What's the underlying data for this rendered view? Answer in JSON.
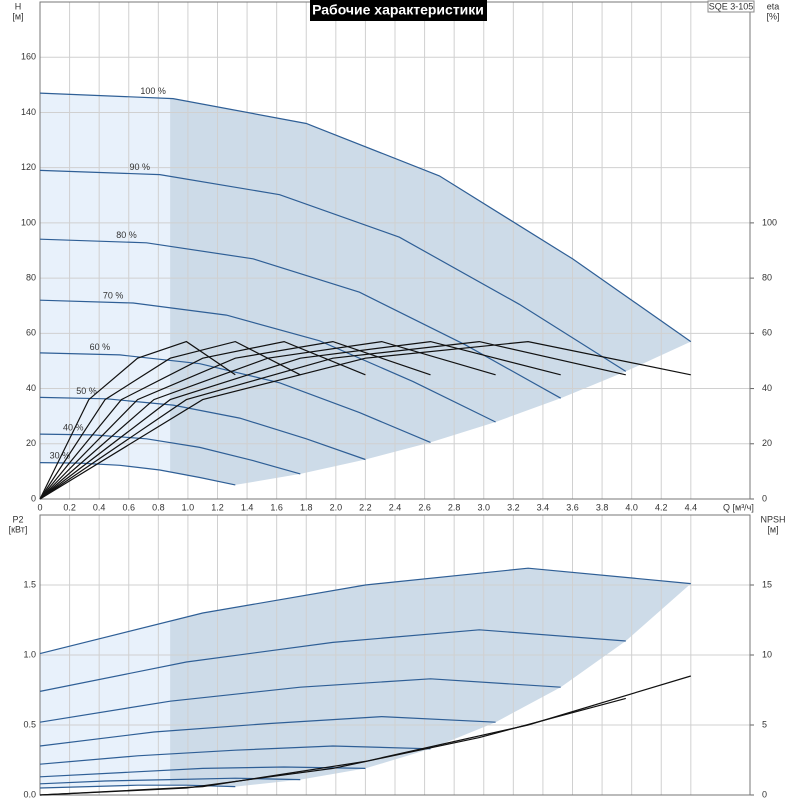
{
  "title": "Рабочие характеристики",
  "model": "SQE 3-105",
  "chart_data": [
    {
      "type": "line",
      "y_label": "H",
      "y_unit": "[м]",
      "y2_label": "eta",
      "y2_unit": "[%]",
      "x_label": "Q [м³/ч]",
      "xlim": [
        0,
        4.8
      ],
      "ylim": [
        0,
        180
      ],
      "y2lim": [
        0,
        180
      ],
      "grid": true,
      "min_q": 0.88,
      "xticks": [
        0,
        0.2,
        0.4,
        0.6,
        0.8,
        {
          "value": 1,
          "label": "1.0"
        },
        1.2,
        1.4,
        1.6,
        1.8,
        {
          "value": 2,
          "label": "2.0"
        },
        2.2,
        2.4,
        2.6,
        2.8,
        {
          "value": 3,
          "label": "3.0"
        },
        3.2,
        3.4,
        3.6,
        3.8,
        {
          "value": 4,
          "label": "4.0"
        },
        4.2,
        4.4
      ],
      "yticks": [
        0,
        20,
        40,
        60,
        80,
        100,
        120,
        140,
        160
      ],
      "y2ticks": [
        0,
        20,
        40,
        60,
        80,
        100
      ],
      "series": [
        {
          "name": "100 %",
          "color": "#2f5f96",
          "x": [
            0,
            0.9,
            1.8,
            2.7,
            3.6,
            4.4
          ],
          "values": [
            147,
            145,
            136,
            117,
            87,
            57
          ]
        },
        {
          "name": "90 %",
          "color": "#2f5f96",
          "x": [
            0,
            0.81,
            1.62,
            2.43,
            3.24,
            3.96
          ],
          "values": [
            119,
            117.5,
            110.2,
            94.8,
            70.5,
            46.2
          ]
        },
        {
          "name": "80 %",
          "color": "#2f5f96",
          "x": [
            0,
            0.72,
            1.44,
            2.16,
            2.88,
            3.52
          ],
          "values": [
            94.1,
            92.8,
            87,
            74.9,
            55.7,
            36.5
          ]
        },
        {
          "name": "70 %",
          "color": "#2f5f96",
          "x": [
            0,
            0.63,
            1.26,
            1.89,
            2.52,
            3.08
          ],
          "values": [
            72,
            71,
            66.6,
            57.3,
            42.6,
            27.9
          ]
        },
        {
          "name": "60 %",
          "color": "#2f5f96",
          "x": [
            0,
            0.54,
            1.08,
            1.62,
            2.16,
            2.64
          ],
          "values": [
            52.9,
            52.2,
            49,
            42.1,
            31.3,
            20.5
          ]
        },
        {
          "name": "50 %",
          "color": "#2f5f96",
          "x": [
            0,
            0.45,
            0.9,
            1.35,
            1.8,
            2.2
          ],
          "values": [
            36.8,
            36.3,
            34,
            29.3,
            21.8,
            14.3
          ]
        },
        {
          "name": "40 %",
          "color": "#2f5f96",
          "x": [
            0,
            0.36,
            0.72,
            1.08,
            1.44,
            1.76
          ],
          "values": [
            23.5,
            23.2,
            21.8,
            18.7,
            13.9,
            9.1
          ]
        },
        {
          "name": "30 %",
          "color": "#2f5f96",
          "x": [
            0,
            0.27,
            0.54,
            0.81,
            1.08,
            1.32
          ],
          "values": [
            13.2,
            13,
            12.2,
            10.5,
            7.8,
            5.1
          ]
        },
        {
          "axis": "y2",
          "color": "#111111",
          "x": [
            0,
            1.1,
            2.2,
            3.3,
            4.4
          ],
          "values": [
            0,
            36,
            51,
            57,
            45
          ]
        },
        {
          "axis": "y2",
          "color": "#111111",
          "x": [
            0,
            0.99,
            1.98,
            2.97,
            3.96
          ],
          "values": [
            0,
            36,
            51,
            57,
            45
          ]
        },
        {
          "axis": "y2",
          "color": "#111111",
          "x": [
            0,
            0.88,
            1.76,
            2.64,
            3.52
          ],
          "values": [
            0,
            36,
            51,
            57,
            45
          ]
        },
        {
          "axis": "y2",
          "color": "#111111",
          "x": [
            0,
            0.77,
            1.54,
            2.31,
            3.08
          ],
          "values": [
            0,
            36,
            51,
            57,
            45
          ]
        },
        {
          "axis": "y2",
          "color": "#111111",
          "x": [
            0,
            0.66,
            1.32,
            1.98,
            2.64
          ],
          "values": [
            0,
            36,
            51,
            57,
            45
          ]
        },
        {
          "axis": "y2",
          "color": "#111111",
          "x": [
            0,
            0.55,
            1.1,
            1.65,
            2.2
          ],
          "values": [
            0,
            36,
            51,
            57,
            45
          ]
        },
        {
          "axis": "y2",
          "color": "#111111",
          "x": [
            0,
            0.44,
            0.88,
            1.32,
            1.76
          ],
          "values": [
            0,
            36,
            51,
            57,
            45
          ]
        },
        {
          "axis": "y2",
          "color": "#111111",
          "x": [
            0,
            0.33,
            0.66,
            0.99,
            1.32
          ],
          "values": [
            0,
            36,
            51,
            57,
            45
          ]
        }
      ]
    },
    {
      "type": "line",
      "y_label": "P2",
      "y_unit": "[кВт]",
      "y2_label": "NPSH",
      "y2_unit": "[м]",
      "xlim": [
        0,
        4.8
      ],
      "ylim": [
        0,
        2
      ],
      "y2lim": [
        0,
        20
      ],
      "grid": true,
      "min_q": 0.88,
      "yticks": [
        {
          "value": 0,
          "label": "0.0"
        },
        0.5,
        {
          "value": 1,
          "label": "1.0"
        },
        1.5
      ],
      "y2ticks": [
        0,
        5,
        10,
        15
      ],
      "series": [
        {
          "color": "#2f5f96",
          "x": [
            0,
            1.1,
            2.2,
            3.3,
            4.4
          ],
          "values": [
            1.01,
            1.3,
            1.5,
            1.62,
            1.51
          ]
        },
        {
          "color": "#2f5f96",
          "x": [
            0,
            0.99,
            1.98,
            2.97,
            3.96
          ],
          "values": [
            0.74,
            0.95,
            1.09,
            1.18,
            1.1
          ]
        },
        {
          "color": "#2f5f96",
          "x": [
            0,
            0.88,
            1.76,
            2.64,
            3.52
          ],
          "values": [
            0.52,
            0.67,
            0.77,
            0.83,
            0.77
          ]
        },
        {
          "color": "#2f5f96",
          "x": [
            0,
            0.77,
            1.54,
            2.31,
            3.08
          ],
          "values": [
            0.35,
            0.45,
            0.51,
            0.56,
            0.52
          ]
        },
        {
          "color": "#2f5f96",
          "x": [
            0,
            0.66,
            1.32,
            1.98,
            2.64
          ],
          "values": [
            0.22,
            0.28,
            0.32,
            0.35,
            0.33
          ]
        },
        {
          "color": "#2f5f96",
          "x": [
            0,
            0.55,
            1.1,
            1.65,
            2.2
          ],
          "values": [
            0.13,
            0.16,
            0.19,
            0.2,
            0.19
          ]
        },
        {
          "color": "#2f5f96",
          "x": [
            0,
            0.44,
            0.88,
            1.32,
            1.76
          ],
          "values": [
            0.08,
            0.1,
            0.11,
            0.12,
            0.11
          ]
        },
        {
          "color": "#2f5f96",
          "x": [
            0,
            0.33,
            0.66,
            0.99,
            1.32
          ],
          "values": [
            0.05,
            0.06,
            0.07,
            0.07,
            0.06
          ]
        },
        {
          "axis": "y2",
          "color": "#111111",
          "x": [
            0,
            1.1,
            2.2,
            3.3,
            4.4
          ],
          "values": [
            0,
            0.6,
            2.4,
            5,
            8.5
          ]
        },
        {
          "axis": "y2",
          "color": "#111111",
          "x": [
            0,
            0.99,
            1.98,
            2.97,
            3.96
          ],
          "values": [
            0,
            0.5,
            1.9,
            4.1,
            6.9
          ]
        }
      ]
    }
  ]
}
